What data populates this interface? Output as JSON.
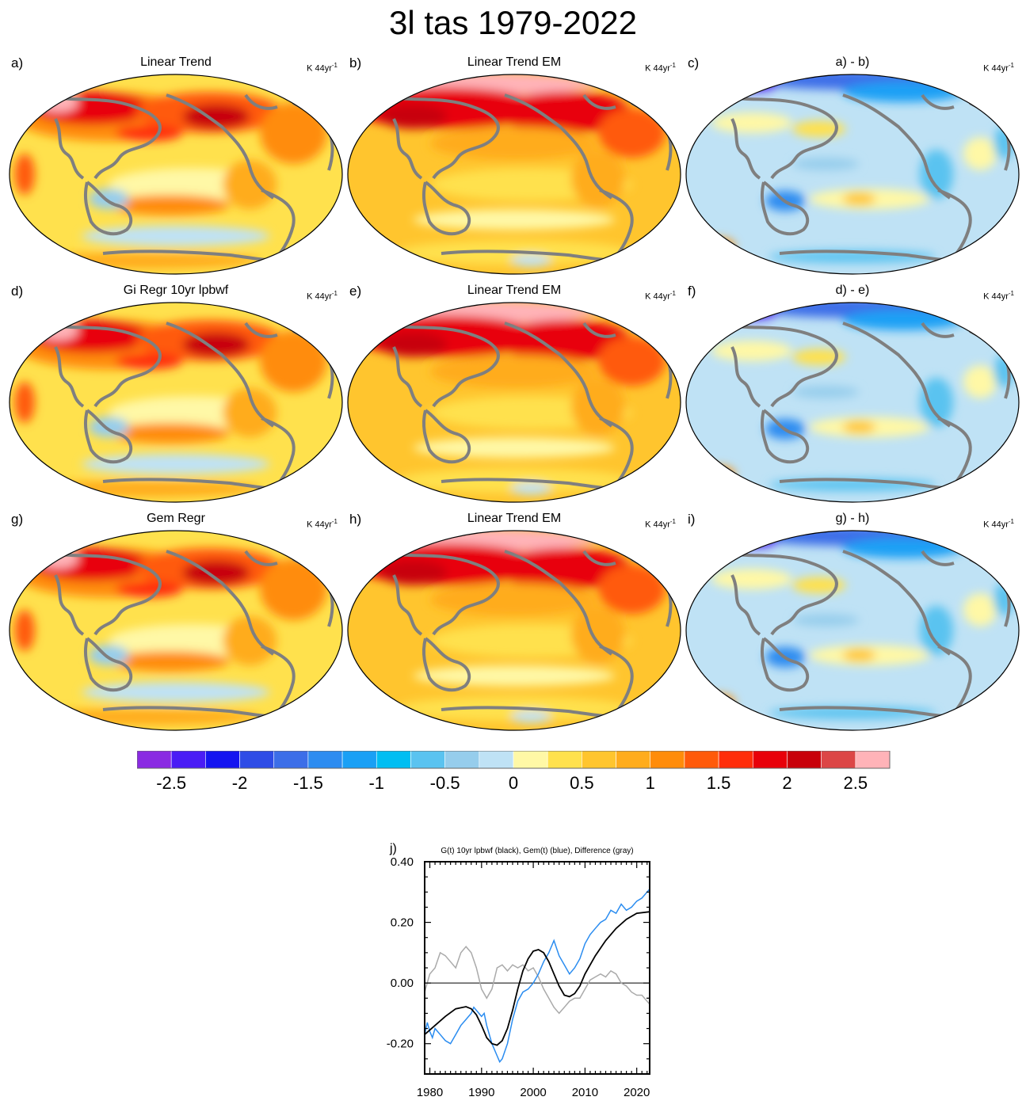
{
  "title": "3l tas 1979-2022",
  "units_label": "K 44yr",
  "units_exp": "-1",
  "panels": [
    {
      "label": "a)",
      "title": "Linear Trend",
      "kind": "obs"
    },
    {
      "label": "b)",
      "title": "Linear Trend EM",
      "kind": "em"
    },
    {
      "label": "c)",
      "title": "a) - b)",
      "kind": "diff"
    },
    {
      "label": "d)",
      "title": "Gi Regr 10yr lpbwf",
      "kind": "obs"
    },
    {
      "label": "e)",
      "title": "Linear Trend EM",
      "kind": "em"
    },
    {
      "label": "f)",
      "title": "d) - e)",
      "kind": "diff"
    },
    {
      "label": "g)",
      "title": "Gem Regr",
      "kind": "obs"
    },
    {
      "label": "h)",
      "title": "Linear Trend EM",
      "kind": "em"
    },
    {
      "label": "i)",
      "title": "g) - h)",
      "kind": "diff"
    }
  ],
  "colorbar": {
    "colors": [
      "#8a2be2",
      "#4a1cf5",
      "#1414f0",
      "#2e4ce6",
      "#3c6ee8",
      "#2d8cf0",
      "#1aa0f5",
      "#00bef2",
      "#5ac3f0",
      "#96cdec",
      "#bfe2f5",
      "#fff8a6",
      "#ffe14d",
      "#ffc52e",
      "#ffac1c",
      "#ff8c0a",
      "#ff5a0a",
      "#ff2d0a",
      "#e8000a",
      "#c8000a",
      "#dc4646",
      "#ffb3b8"
    ],
    "tick_labels": [
      "-2.5",
      "-2",
      "-1.5",
      "-1",
      "-0.5",
      "0",
      "0.5",
      "1",
      "1.5",
      "2",
      "2.5"
    ]
  },
  "chart_data": {
    "type": "line",
    "label": "j)",
    "title": "G(t)  10yr lpbwf (black), Gem(t) (blue), Difference (gray)",
    "xlim": [
      1979,
      2022.5
    ],
    "ylim": [
      -0.3,
      0.4
    ],
    "x_ticks": [
      1980,
      1990,
      2000,
      2010,
      2020
    ],
    "y_ticks": [
      -0.2,
      0.0,
      0.2,
      0.4
    ],
    "y_tick_labels": [
      "-0.20",
      "0.00",
      "0.20",
      "0.40"
    ],
    "zero_line": 0.0,
    "series": [
      {
        "color": "#000000",
        "x": [
          1979,
          1981,
          1983,
          1985,
          1987,
          1988,
          1989,
          1990,
          1991,
          1992,
          1993,
          1994,
          1995,
          1996,
          1997,
          1998,
          1999,
          2000,
          2001,
          2002,
          2003,
          2004,
          2005,
          2006,
          2007,
          2008,
          2009,
          2010,
          2012,
          2014,
          2016,
          2018,
          2020,
          2022.5
        ],
        "y": [
          -0.17,
          -0.14,
          -0.11,
          -0.085,
          -0.078,
          -0.085,
          -0.105,
          -0.14,
          -0.18,
          -0.2,
          -0.205,
          -0.19,
          -0.15,
          -0.09,
          -0.02,
          0.04,
          0.08,
          0.105,
          0.11,
          0.1,
          0.07,
          0.03,
          -0.01,
          -0.04,
          -0.045,
          -0.035,
          -0.01,
          0.03,
          0.09,
          0.14,
          0.18,
          0.21,
          0.23,
          0.235
        ]
      },
      {
        "color": "#2a8cf0",
        "x": [
          1979,
          1979.5,
          1980,
          1980.5,
          1981,
          1982,
          1983,
          1984,
          1985,
          1986,
          1987,
          1988,
          1988.5,
          1989,
          1990,
          1990.5,
          1991,
          1992,
          1993,
          1993.5,
          1994,
          1995,
          1996,
          1997,
          1998,
          1999,
          2000,
          2001,
          2002,
          2003,
          2004,
          2005,
          2006,
          2007,
          2008,
          2009,
          2010,
          2011,
          2012,
          2013,
          2014,
          2015,
          2016,
          2017,
          2018,
          2019,
          2020,
          2021,
          2022,
          2022.5
        ],
        "y": [
          -0.17,
          -0.13,
          -0.16,
          -0.18,
          -0.15,
          -0.17,
          -0.19,
          -0.2,
          -0.17,
          -0.14,
          -0.12,
          -0.1,
          -0.08,
          -0.09,
          -0.11,
          -0.1,
          -0.14,
          -0.2,
          -0.24,
          -0.26,
          -0.25,
          -0.2,
          -0.12,
          -0.06,
          -0.03,
          -0.02,
          0.0,
          0.03,
          0.07,
          0.1,
          0.14,
          0.09,
          0.06,
          0.03,
          0.05,
          0.08,
          0.13,
          0.16,
          0.18,
          0.2,
          0.21,
          0.24,
          0.23,
          0.26,
          0.24,
          0.25,
          0.27,
          0.28,
          0.3,
          0.31
        ]
      },
      {
        "color": "#aaaaaa",
        "x": [
          1979,
          1980,
          1981,
          1982,
          1983,
          1984,
          1985,
          1986,
          1987,
          1988,
          1989,
          1990,
          1991,
          1992,
          1993,
          1994,
          1995,
          1996,
          1997,
          1998,
          1999,
          2000,
          2001,
          2002,
          2003,
          2004,
          2005,
          2006,
          2007,
          2008,
          2009,
          2010,
          2011,
          2012,
          2013,
          2014,
          2015,
          2016,
          2017,
          2018,
          2019,
          2020,
          2021,
          2022,
          2022.5
        ],
        "y": [
          -0.03,
          0.03,
          0.05,
          0.1,
          0.09,
          0.07,
          0.05,
          0.1,
          0.12,
          0.1,
          0.05,
          -0.02,
          -0.05,
          -0.02,
          0.05,
          0.06,
          0.04,
          0.06,
          0.05,
          0.06,
          0.04,
          0.05,
          0.02,
          -0.02,
          -0.05,
          -0.08,
          -0.1,
          -0.08,
          -0.06,
          -0.05,
          -0.05,
          -0.02,
          0.01,
          0.02,
          0.03,
          0.02,
          0.04,
          0.03,
          0.0,
          -0.01,
          -0.03,
          -0.04,
          -0.04,
          -0.06,
          -0.07
        ]
      }
    ]
  }
}
